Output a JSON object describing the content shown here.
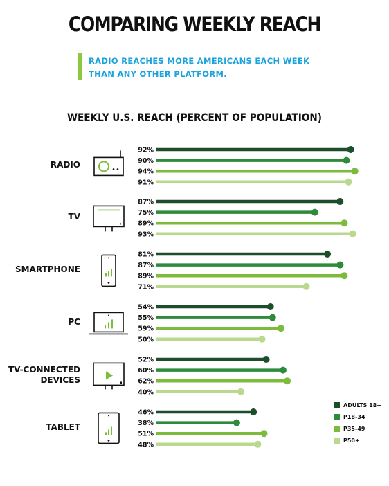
{
  "header": {
    "title": "COMPARING WEEKLY REACH",
    "callout_line1": "RADIO REACHES MORE AMERICANS EACH WEEK",
    "callout_line2": "THAN ANY OTHER PLATFORM."
  },
  "colors": {
    "series": [
      "#1e4d2b",
      "#2e8b3a",
      "#7dbb3c",
      "#b9d98f"
    ],
    "callout_text": "#1aa3dc",
    "callout_bar": "#8dc63f",
    "icon_stroke": "#111111",
    "icon_accent": "#7dbb3c"
  },
  "chart_data": {
    "type": "bar",
    "orientation": "horizontal",
    "title": "WEEKLY U.S. REACH (PERCENT OF POPULATION)",
    "categories": [
      "RADIO",
      "TV",
      "SMARTPHONE",
      "PC",
      "TV-CONNECTED DEVICES",
      "TABLET"
    ],
    "category_icons": [
      "radio-icon",
      "tv-icon",
      "smartphone-icon",
      "laptop-icon",
      "connected-tv-icon",
      "tablet-icon"
    ],
    "series": [
      {
        "name": "ADULTS 18+",
        "values": [
          92,
          87,
          81,
          54,
          52,
          46
        ]
      },
      {
        "name": "P18-34",
        "values": [
          90,
          75,
          87,
          55,
          60,
          38
        ]
      },
      {
        "name": "P35-49",
        "values": [
          94,
          89,
          89,
          59,
          62,
          51
        ]
      },
      {
        "name": "P50+",
        "values": [
          91,
          93,
          71,
          50,
          40,
          48
        ]
      }
    ],
    "value_labels": [
      [
        "92%",
        "90%",
        "94%",
        "91%"
      ],
      [
        "87%",
        "75%",
        "89%",
        "93%"
      ],
      [
        "81%",
        "87%",
        "89%",
        "71%"
      ],
      [
        "54%",
        "55%",
        "59%",
        "50%"
      ],
      [
        "52%",
        "60%",
        "62%",
        "40%"
      ],
      [
        "46%",
        "38%",
        "51%",
        "48%"
      ]
    ],
    "xlim": [
      0,
      100
    ],
    "legend_position": "bottom-right",
    "grid": false
  }
}
